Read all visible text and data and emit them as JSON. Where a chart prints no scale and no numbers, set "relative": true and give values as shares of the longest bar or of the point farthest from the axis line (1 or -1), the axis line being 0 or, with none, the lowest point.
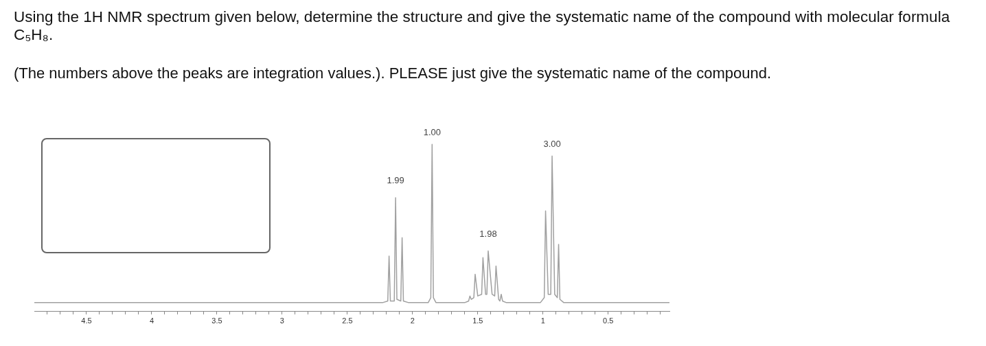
{
  "chart_data": {
    "type": "line",
    "title": "Using the 1H NMR spectrum given below, determine the structure and give the systematic name of the compound with molecular formula C₅H₈.",
    "subtitle": "(The numbers above the peaks are integration values.). PLEASE just give the systematic name of the compound.",
    "relative": true,
    "xlim": [
      4.9,
      0.03
    ],
    "xticks": [
      {
        "value": 4.8,
        "label": null
      },
      {
        "value": 4.7,
        "label": null
      },
      {
        "value": 4.6,
        "label": null
      },
      4.5,
      {
        "value": 4.4,
        "label": null
      },
      {
        "value": 4.3,
        "label": null
      },
      {
        "value": 4.2,
        "label": null
      },
      {
        "value": 4.1,
        "label": null
      },
      4,
      {
        "value": 3.9,
        "label": null
      },
      {
        "value": 3.8,
        "label": null
      },
      {
        "value": 3.7,
        "label": null
      },
      {
        "value": 3.6,
        "label": null
      },
      3.5,
      {
        "value": 3.4,
        "label": null
      },
      {
        "value": 3.3,
        "label": null
      },
      {
        "value": 3.2,
        "label": null
      },
      {
        "value": 3.1,
        "label": null
      },
      3,
      {
        "value": 2.9,
        "label": null
      },
      {
        "value": 2.8,
        "label": null
      },
      {
        "value": 2.7,
        "label": null
      },
      {
        "value": 2.6,
        "label": null
      },
      2.5,
      {
        "value": 2.4,
        "label": null
      },
      {
        "value": 2.3,
        "label": null
      },
      {
        "value": 2.2,
        "label": null
      },
      {
        "value": 2.1,
        "label": null
      },
      2,
      {
        "value": 1.9,
        "label": null
      },
      {
        "value": 1.8,
        "label": null
      },
      {
        "value": 1.7,
        "label": null
      },
      {
        "value": 1.6,
        "label": null
      },
      1.5,
      {
        "value": 1.4,
        "label": null
      },
      {
        "value": 1.3,
        "label": null
      },
      {
        "value": 1.2,
        "label": null
      },
      {
        "value": 1.1,
        "label": null
      },
      1,
      {
        "value": 0.9,
        "label": null
      },
      {
        "value": 0.8,
        "label": null
      },
      {
        "value": 0.7,
        "label": null
      },
      {
        "value": 0.6,
        "label": null
      },
      0.5,
      {
        "value": 0.4,
        "label": null
      },
      {
        "value": 0.3,
        "label": null
      },
      {
        "value": 0.2,
        "label": null
      },
      {
        "value": 0.1,
        "label": null
      }
    ],
    "tick_labels": "x",
    "grid": false,
    "marker": "none",
    "legend": false,
    "series": [
      {
        "color": "#a0a0a0",
        "x": [
          4.9,
          2.23,
          2.19,
          2.18,
          2.17,
          2.14,
          2.13,
          2.12,
          2.09,
          2.08,
          2.07,
          2.03,
          1.88,
          1.86,
          1.85,
          1.84,
          1.82,
          1.6,
          1.57,
          1.56,
          1.55,
          1.53,
          1.52,
          1.5,
          1.47,
          1.46,
          1.44,
          1.43,
          1.42,
          1.39,
          1.37,
          1.36,
          1.34,
          1.33,
          1.32,
          1.31,
          1.28,
          1.02,
          0.99,
          0.98,
          0.96,
          0.94,
          0.93,
          0.91,
          0.89,
          0.88,
          0.87,
          0.84,
          0.03
        ],
        "values": [
          0.05,
          0.05,
          0.06,
          0.33,
          0.06,
          0.06,
          0.68,
          0.07,
          0.06,
          0.44,
          0.06,
          0.05,
          0.05,
          0.08,
          1,
          0.08,
          0.05,
          0.05,
          0.06,
          0.09,
          0.07,
          0.08,
          0.22,
          0.09,
          0.1,
          0.32,
          0.1,
          0.1,
          0.36,
          0.1,
          0.09,
          0.27,
          0.07,
          0.06,
          0.1,
          0.06,
          0.05,
          0.05,
          0.08,
          0.6,
          0.1,
          0.1,
          0.93,
          0.1,
          0.08,
          0.4,
          0.07,
          0.05,
          0.05
        ]
      }
    ],
    "annotations": [
      {
        "text": "1.99",
        "x": 2.13,
        "y": 0.68
      },
      {
        "text": "1.00",
        "x": 1.85,
        "y": 1
      },
      {
        "text": "1.98",
        "x": 1.42,
        "y": 0.36
      },
      {
        "text": "3.00",
        "x": 0.93,
        "y": 0.93
      }
    ]
  }
}
